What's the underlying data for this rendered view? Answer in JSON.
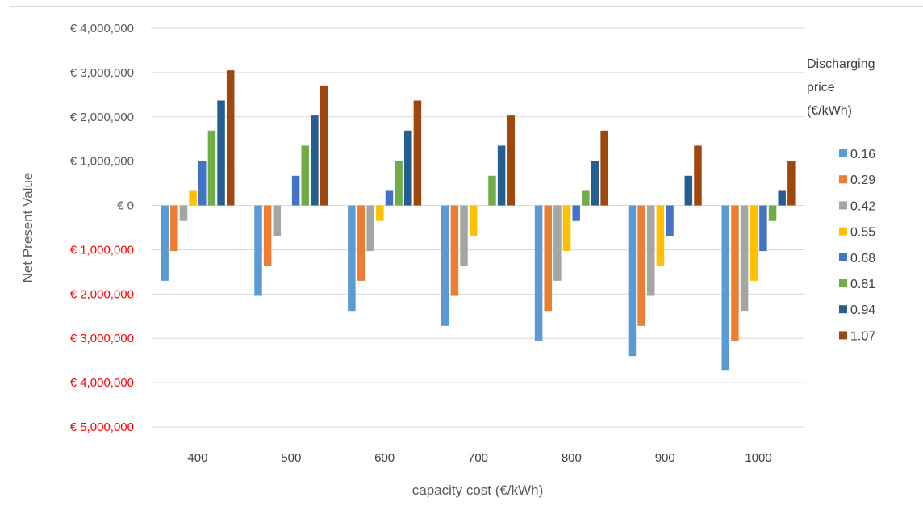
{
  "chart_data": {
    "type": "bar",
    "xlabel": "capacity cost (€/kWh)",
    "ylabel": "Net Present Value",
    "ylim": [
      -5000000,
      4000000
    ],
    "ytick_values": [
      4000000,
      3000000,
      2000000,
      1000000,
      0,
      -1000000,
      -2000000,
      -3000000,
      -4000000,
      -5000000
    ],
    "ytick_labels": [
      "€ 4,000,000",
      "€ 3,000,000",
      "€ 2,000,000",
      "€ 1,000,000",
      "€ 0",
      "€ 1,000,000",
      "€ 2,000,000",
      "€ 3,000,000",
      "€ 4,000,000",
      "€ 5,000,000"
    ],
    "negative_label_color": "#ff0000",
    "positive_label_color": "#595959",
    "grid": true,
    "legend_position": "right",
    "legend_title": [
      "Discharging",
      "price",
      "(€/kWh)"
    ],
    "categories": [
      "400",
      "500",
      "600",
      "700",
      "800",
      "900",
      "1000"
    ],
    "series": [
      {
        "name": "0.16",
        "color": "#5b9bd5",
        "values": [
          -1700000,
          -2040000,
          -2380000,
          -2720000,
          -3050000,
          -3400000,
          -3730000
        ]
      },
      {
        "name": "0.29",
        "color": "#ed7d31",
        "values": [
          -1030000,
          -1370000,
          -1700000,
          -2040000,
          -2380000,
          -2720000,
          -3050000
        ]
      },
      {
        "name": "0.42",
        "color": "#a5a5a5",
        "values": [
          -350000,
          -690000,
          -1030000,
          -1370000,
          -1700000,
          -2040000,
          -2380000
        ]
      },
      {
        "name": "0.55",
        "color": "#ffc000",
        "values": [
          330000,
          0,
          -350000,
          -690000,
          -1030000,
          -1370000,
          -1700000
        ]
      },
      {
        "name": "0.68",
        "color": "#4472c4",
        "values": [
          1010000,
          670000,
          330000,
          0,
          -350000,
          -690000,
          -1030000
        ]
      },
      {
        "name": "0.81",
        "color": "#70ad47",
        "values": [
          1690000,
          1350000,
          1010000,
          670000,
          330000,
          0,
          -350000
        ]
      },
      {
        "name": "0.94",
        "color": "#255e91",
        "values": [
          2370000,
          2030000,
          1690000,
          1350000,
          1010000,
          670000,
          330000
        ]
      },
      {
        "name": "1.07",
        "color": "#9e480e",
        "values": [
          3050000,
          2710000,
          2370000,
          2030000,
          1690000,
          1350000,
          1010000
        ]
      }
    ]
  }
}
